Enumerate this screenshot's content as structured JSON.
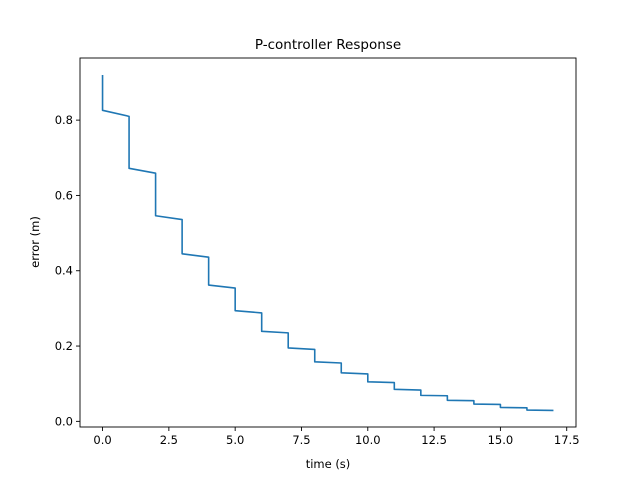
{
  "chart_data": {
    "type": "line",
    "title": "P-controller Response",
    "xlabel": "time (s)",
    "ylabel": "error (m)",
    "xlim": [
      -0.85,
      17.85
    ],
    "ylim": [
      -0.015,
      0.965
    ],
    "xticks": [
      0,
      2.5,
      5,
      7.5,
      10,
      12.5,
      15,
      17.5
    ],
    "xtick_labels": [
      "0.0",
      "2.5",
      "5.0",
      "7.5",
      "10.0",
      "12.5",
      "15.0",
      "17.5"
    ],
    "yticks": [
      0,
      0.2,
      0.4,
      0.6,
      0.8
    ],
    "ytick_labels": [
      "0.0",
      "0.2",
      "0.4",
      "0.6",
      "0.8"
    ],
    "grid": false,
    "legend": "none",
    "color": "#1f77b4",
    "series": [
      {
        "x": [
          0,
          0,
          0,
          1,
          1,
          2,
          2,
          3,
          3,
          4,
          4,
          5,
          5,
          6,
          6,
          7,
          7,
          8,
          8,
          9,
          9,
          10,
          10,
          11,
          11,
          12,
          12,
          13,
          13,
          14,
          14,
          15,
          15,
          16,
          16,
          17
        ],
        "y": [
          0.92,
          0.915,
          0.826,
          0.81,
          0.672,
          0.659,
          0.546,
          0.536,
          0.445,
          0.436,
          0.362,
          0.354,
          0.294,
          0.288,
          0.239,
          0.235,
          0.195,
          0.191,
          0.158,
          0.155,
          0.129,
          0.126,
          0.105,
          0.103,
          0.085,
          0.083,
          0.069,
          0.068,
          0.056,
          0.055,
          0.046,
          0.045,
          0.037,
          0.036,
          0.03,
          0.029
        ]
      }
    ]
  }
}
